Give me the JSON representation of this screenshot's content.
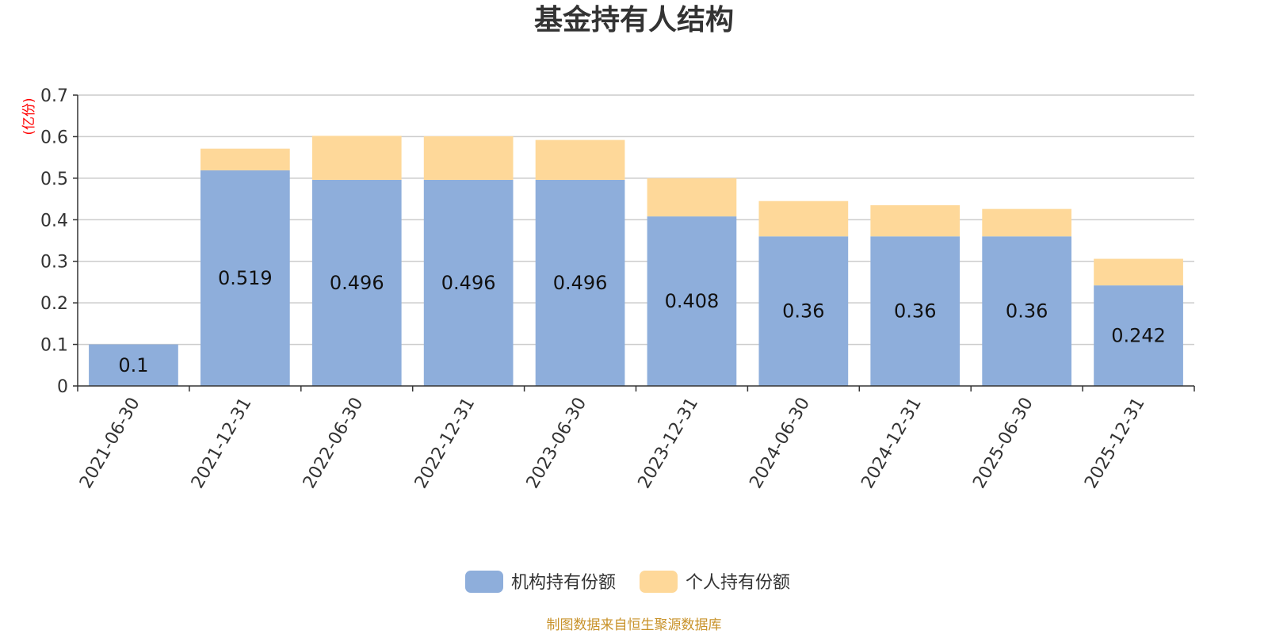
{
  "chart_data": {
    "type": "bar",
    "stacked": true,
    "title": "基金持有人结构",
    "ylabel": "(亿份)",
    "xlabel": "",
    "ylim": [
      0,
      0.7
    ],
    "yticks": [
      "0",
      "0.1",
      "0.2",
      "0.3",
      "0.4",
      "0.5",
      "0.6",
      "0.7"
    ],
    "grid": true,
    "legend_position": "bottom",
    "categories": [
      "2021-06-30",
      "2021-12-31",
      "2022-06-30",
      "2022-12-31",
      "2023-06-30",
      "2023-12-31",
      "2024-06-30",
      "2024-12-31",
      "2025-06-30",
      "2025-12-31"
    ],
    "series": [
      {
        "name": "机构持有份额",
        "color": "#8eaedb",
        "values": [
          0.1,
          0.519,
          0.496,
          0.496,
          0.496,
          0.408,
          0.36,
          0.36,
          0.36,
          0.242
        ],
        "labels": [
          "0.1",
          "0.519",
          "0.496",
          "0.496",
          "0.496",
          "0.408",
          "0.36",
          "0.36",
          "0.36",
          "0.242"
        ]
      },
      {
        "name": "个人持有份额",
        "color": "#fed899",
        "values": [
          0.0,
          0.052,
          0.106,
          0.105,
          0.096,
          0.092,
          0.085,
          0.075,
          0.066,
          0.064
        ]
      }
    ],
    "source": "制图数据来自恒生聚源数据库"
  }
}
